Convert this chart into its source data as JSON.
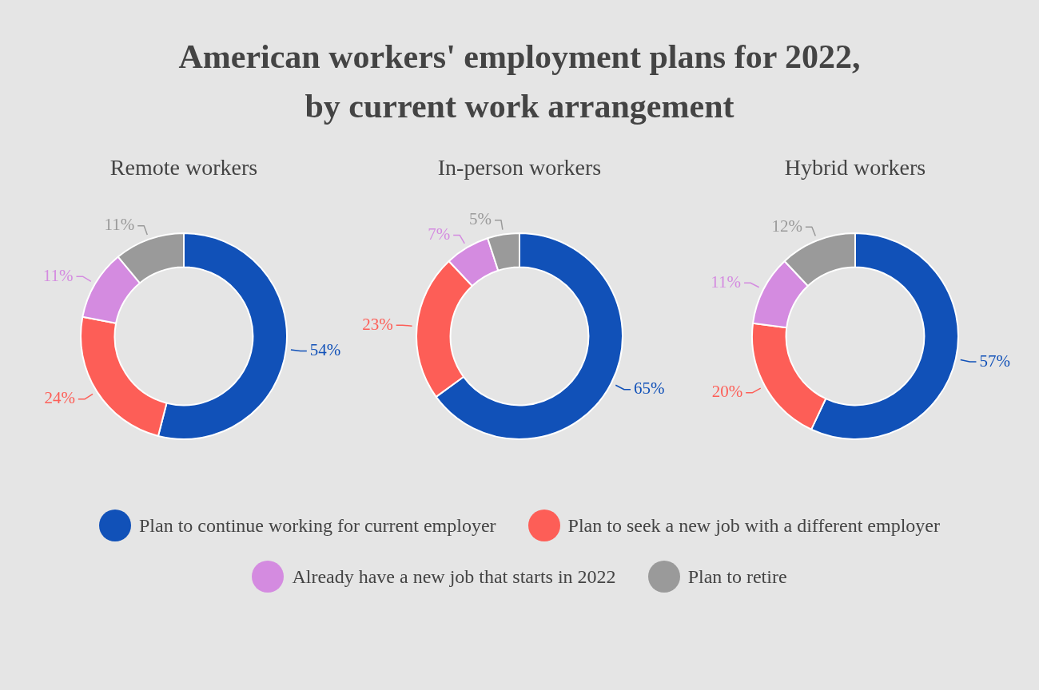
{
  "chart_data": [
    {
      "type": "donut",
      "title": "American workers' employment plans for 2022, by current work arrangement",
      "subtitle": "Remote workers",
      "categories": [
        "Plan to continue working for current employer",
        "Plan to seek a new job with a different employer",
        "Already have a new job that starts in 2022",
        "Plan to retire"
      ],
      "values": [
        54,
        24,
        11,
        11
      ],
      "value_labels": [
        "54%",
        "24%",
        "11%",
        "11%"
      ],
      "colors": [
        "#1151b8",
        "#fd5e57",
        "#d48be0",
        "#9a9a9a"
      ],
      "legend": "bottom"
    },
    {
      "type": "donut",
      "subtitle": "In-person workers",
      "categories": [
        null,
        null,
        null,
        null
      ],
      "values": [
        65,
        23,
        7,
        5
      ],
      "value_labels": [
        "65%",
        "23%",
        "7%",
        "5%"
      ],
      "colors": [
        "#1151b8",
        "#fd5e57",
        "#d48be0",
        "#9a9a9a"
      ]
    },
    {
      "type": "donut",
      "subtitle": "Hybrid workers",
      "categories": [
        null,
        null,
        null,
        null
      ],
      "values": [
        57,
        20,
        11,
        12
      ],
      "value_labels": [
        "57%",
        "20%",
        "11%",
        "12%"
      ],
      "colors": [
        "#1151b8",
        "#fd5e57",
        "#d48be0",
        "#9a9a9a"
      ]
    }
  ]
}
